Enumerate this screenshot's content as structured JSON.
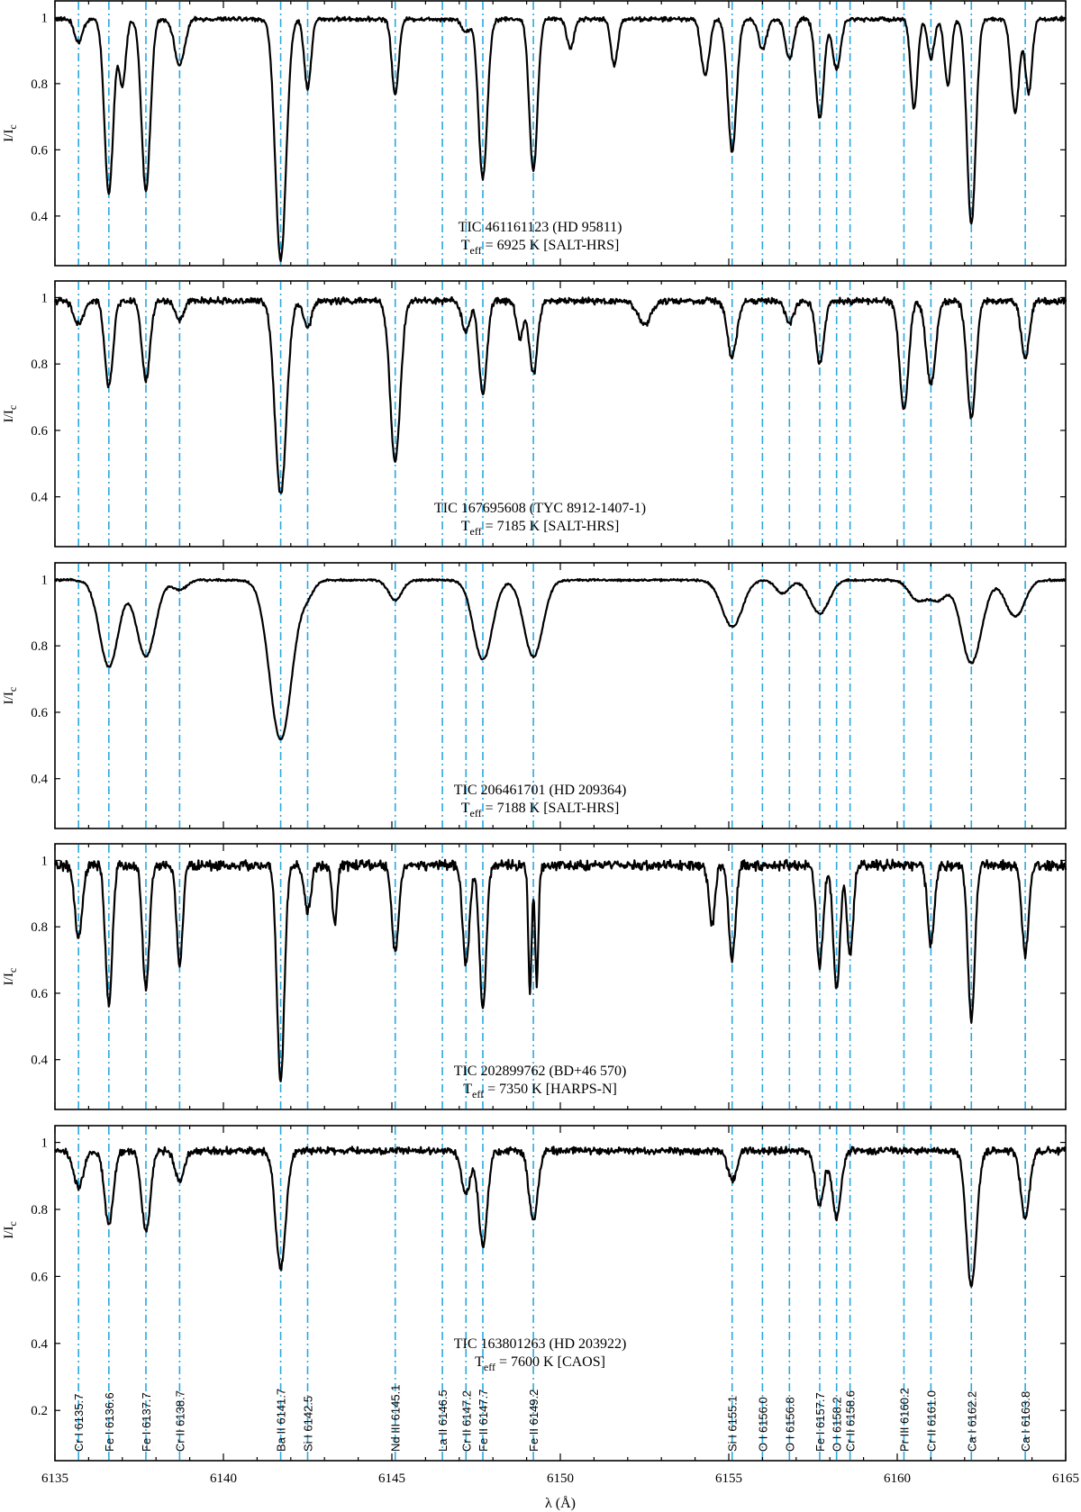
{
  "chart_data": [
    {
      "type": "line",
      "target": "TIC 461161123 (HD 95811)",
      "teff_value": "= 6925 K",
      "instrument": "[SALT-HRS]",
      "ylabel": "I/I_c",
      "xlim": [
        6135,
        6165
      ],
      "ylim": [
        0.25,
        1.05
      ],
      "yticks": [
        0.4,
        0.6,
        0.8,
        1
      ],
      "continuum": 0.995,
      "lines": [
        {
          "x": 6135.7,
          "depth": 0.07,
          "width": 0.12
        },
        {
          "x": 6136.6,
          "depth": 0.53,
          "width": 0.13
        },
        {
          "x": 6137.0,
          "depth": 0.2,
          "width": 0.1
        },
        {
          "x": 6137.7,
          "depth": 0.52,
          "width": 0.13
        },
        {
          "x": 6138.7,
          "depth": 0.14,
          "width": 0.15
        },
        {
          "x": 6141.7,
          "depth": 0.73,
          "width": 0.16
        },
        {
          "x": 6142.5,
          "depth": 0.21,
          "width": 0.1
        },
        {
          "x": 6145.1,
          "depth": 0.23,
          "width": 0.1
        },
        {
          "x": 6147.2,
          "depth": 0.04,
          "width": 0.12
        },
        {
          "x": 6147.7,
          "depth": 0.48,
          "width": 0.13
        },
        {
          "x": 6149.2,
          "depth": 0.46,
          "width": 0.12
        },
        {
          "x": 6150.3,
          "depth": 0.09,
          "width": 0.1
        },
        {
          "x": 6151.6,
          "depth": 0.14,
          "width": 0.1
        },
        {
          "x": 6154.3,
          "depth": 0.17,
          "width": 0.12
        },
        {
          "x": 6155.1,
          "depth": 0.4,
          "width": 0.13
        },
        {
          "x": 6156.0,
          "depth": 0.09,
          "width": 0.12
        },
        {
          "x": 6156.8,
          "depth": 0.12,
          "width": 0.12
        },
        {
          "x": 6157.7,
          "depth": 0.3,
          "width": 0.12
        },
        {
          "x": 6158.2,
          "depth": 0.15,
          "width": 0.12
        },
        {
          "x": 6160.5,
          "depth": 0.27,
          "width": 0.1
        },
        {
          "x": 6161.0,
          "depth": 0.12,
          "width": 0.1
        },
        {
          "x": 6161.5,
          "depth": 0.2,
          "width": 0.1
        },
        {
          "x": 6162.2,
          "depth": 0.62,
          "width": 0.13
        },
        {
          "x": 6163.5,
          "depth": 0.28,
          "width": 0.12
        },
        {
          "x": 6163.9,
          "depth": 0.22,
          "width": 0.1
        }
      ]
    },
    {
      "type": "line",
      "target": "TIC 167695608 (TYC 8912-1407-1)",
      "teff_value": "= 7185 K",
      "instrument": "[SALT-HRS]",
      "ylabel": "I/I_c",
      "xlim": [
        6135,
        6165
      ],
      "ylim": [
        0.25,
        1.05
      ],
      "yticks": [
        0.4,
        0.6,
        0.8,
        1
      ],
      "continuum": 0.99,
      "lines": [
        {
          "x": 6135.7,
          "depth": 0.07,
          "width": 0.15
        },
        {
          "x": 6136.6,
          "depth": 0.26,
          "width": 0.12
        },
        {
          "x": 6137.7,
          "depth": 0.24,
          "width": 0.12
        },
        {
          "x": 6138.7,
          "depth": 0.06,
          "width": 0.12
        },
        {
          "x": 6141.7,
          "depth": 0.58,
          "width": 0.17
        },
        {
          "x": 6142.5,
          "depth": 0.08,
          "width": 0.12
        },
        {
          "x": 6145.1,
          "depth": 0.48,
          "width": 0.15
        },
        {
          "x": 6147.2,
          "depth": 0.09,
          "width": 0.12
        },
        {
          "x": 6147.7,
          "depth": 0.28,
          "width": 0.12
        },
        {
          "x": 6148.8,
          "depth": 0.11,
          "width": 0.1
        },
        {
          "x": 6149.2,
          "depth": 0.22,
          "width": 0.12
        },
        {
          "x": 6152.5,
          "depth": 0.07,
          "width": 0.2
        },
        {
          "x": 6155.1,
          "depth": 0.17,
          "width": 0.14
        },
        {
          "x": 6156.8,
          "depth": 0.07,
          "width": 0.12
        },
        {
          "x": 6157.7,
          "depth": 0.19,
          "width": 0.12
        },
        {
          "x": 6160.2,
          "depth": 0.33,
          "width": 0.13
        },
        {
          "x": 6161.0,
          "depth": 0.25,
          "width": 0.14
        },
        {
          "x": 6162.2,
          "depth": 0.35,
          "width": 0.13
        },
        {
          "x": 6163.8,
          "depth": 0.17,
          "width": 0.12
        }
      ]
    },
    {
      "type": "line",
      "target": "TIC 206461701 (HD 209364)",
      "teff_value": "= 7188 K",
      "instrument": "[SALT-HRS]",
      "ylabel": "I/I_c",
      "xlim": [
        6135,
        6165
      ],
      "ylim": [
        0.25,
        1.05
      ],
      "yticks": [
        0.4,
        0.6,
        0.8,
        1
      ],
      "continuum": 0.998,
      "lines": [
        {
          "x": 6136.6,
          "depth": 0.26,
          "width": 0.28
        },
        {
          "x": 6137.7,
          "depth": 0.23,
          "width": 0.28
        },
        {
          "x": 6138.7,
          "depth": 0.03,
          "width": 0.2
        },
        {
          "x": 6141.7,
          "depth": 0.48,
          "width": 0.33
        },
        {
          "x": 6142.5,
          "depth": 0.04,
          "width": 0.2
        },
        {
          "x": 6145.1,
          "depth": 0.06,
          "width": 0.2
        },
        {
          "x": 6147.7,
          "depth": 0.24,
          "width": 0.28
        },
        {
          "x": 6149.2,
          "depth": 0.23,
          "width": 0.28
        },
        {
          "x": 6155.1,
          "depth": 0.14,
          "width": 0.3
        },
        {
          "x": 6156.6,
          "depth": 0.04,
          "width": 0.2
        },
        {
          "x": 6157.7,
          "depth": 0.1,
          "width": 0.28
        },
        {
          "x": 6160.6,
          "depth": 0.06,
          "width": 0.25
        },
        {
          "x": 6161.2,
          "depth": 0.06,
          "width": 0.25
        },
        {
          "x": 6162.2,
          "depth": 0.25,
          "width": 0.3
        },
        {
          "x": 6163.5,
          "depth": 0.11,
          "width": 0.28
        }
      ]
    },
    {
      "type": "line",
      "target": "TIC 202899762 (BD+46 570)",
      "teff_value": "= 7350 K",
      "instrument": "[HARPS-N]",
      "ylabel": "I/I_c",
      "xlim": [
        6135,
        6165
      ],
      "ylim": [
        0.25,
        1.05
      ],
      "yticks": [
        0.4,
        0.6,
        0.8,
        1
      ],
      "continuum": 0.985,
      "lines": [
        {
          "x": 6135.7,
          "depth": 0.22,
          "width": 0.11
        },
        {
          "x": 6136.6,
          "depth": 0.42,
          "width": 0.1
        },
        {
          "x": 6137.7,
          "depth": 0.37,
          "width": 0.1
        },
        {
          "x": 6138.7,
          "depth": 0.3,
          "width": 0.09
        },
        {
          "x": 6141.7,
          "depth": 0.65,
          "width": 0.11
        },
        {
          "x": 6142.5,
          "depth": 0.14,
          "width": 0.1
        },
        {
          "x": 6143.3,
          "depth": 0.18,
          "width": 0.07
        },
        {
          "x": 6145.1,
          "depth": 0.26,
          "width": 0.1
        },
        {
          "x": 6147.2,
          "depth": 0.3,
          "width": 0.1
        },
        {
          "x": 6147.7,
          "depth": 0.43,
          "width": 0.1
        },
        {
          "x": 6149.1,
          "depth": 0.38,
          "width": 0.05
        },
        {
          "x": 6149.3,
          "depth": 0.36,
          "width": 0.05
        },
        {
          "x": 6154.5,
          "depth": 0.18,
          "width": 0.09
        },
        {
          "x": 6155.1,
          "depth": 0.28,
          "width": 0.1
        },
        {
          "x": 6157.7,
          "depth": 0.3,
          "width": 0.1
        },
        {
          "x": 6158.2,
          "depth": 0.37,
          "width": 0.1
        },
        {
          "x": 6158.6,
          "depth": 0.27,
          "width": 0.09
        },
        {
          "x": 6161.0,
          "depth": 0.24,
          "width": 0.1
        },
        {
          "x": 6162.2,
          "depth": 0.47,
          "width": 0.1
        },
        {
          "x": 6163.8,
          "depth": 0.27,
          "width": 0.1
        }
      ]
    },
    {
      "type": "line",
      "target": "TIC 163801263 (HD 203922)",
      "teff_value": "= 7600 K",
      "instrument": "[CAOS]",
      "ylabel": "I/I_c",
      "xlabel": "λ (Å)",
      "xlim": [
        6135,
        6165
      ],
      "xticks": [
        6135,
        6140,
        6145,
        6150,
        6155,
        6160,
        6165
      ],
      "ylim": [
        0.05,
        1.05
      ],
      "yticks": [
        0.2,
        0.4,
        0.6,
        0.8,
        1
      ],
      "continuum": 0.975,
      "lines": [
        {
          "x": 6135.7,
          "depth": 0.11,
          "width": 0.15
        },
        {
          "x": 6136.6,
          "depth": 0.22,
          "width": 0.13
        },
        {
          "x": 6137.7,
          "depth": 0.24,
          "width": 0.13
        },
        {
          "x": 6138.7,
          "depth": 0.09,
          "width": 0.13
        },
        {
          "x": 6141.7,
          "depth": 0.35,
          "width": 0.15
        },
        {
          "x": 6147.2,
          "depth": 0.13,
          "width": 0.13
        },
        {
          "x": 6147.7,
          "depth": 0.28,
          "width": 0.13
        },
        {
          "x": 6149.2,
          "depth": 0.21,
          "width": 0.13
        },
        {
          "x": 6155.1,
          "depth": 0.09,
          "width": 0.13
        },
        {
          "x": 6157.7,
          "depth": 0.16,
          "width": 0.13
        },
        {
          "x": 6158.2,
          "depth": 0.2,
          "width": 0.13
        },
        {
          "x": 6162.2,
          "depth": 0.4,
          "width": 0.15
        },
        {
          "x": 6163.8,
          "depth": 0.2,
          "width": 0.13
        }
      ]
    }
  ],
  "figure": {
    "teff_symbol": "T",
    "teff_sub": "eff",
    "line_color": "#29A9E0",
    "line_ids": [
      {
        "x": 6135.7,
        "label": "Cr I 6135.7"
      },
      {
        "x": 6136.6,
        "label": "Fe I 6136.6"
      },
      {
        "x": 6137.7,
        "label": "Fe I 6137.7"
      },
      {
        "x": 6138.7,
        "label": "Cr II 6138.7"
      },
      {
        "x": 6141.7,
        "label": "Ba II 6141.7"
      },
      {
        "x": 6142.5,
        "label": "Si I 6142.5"
      },
      {
        "x": 6145.1,
        "label": "Nd III 6145.1"
      },
      {
        "x": 6146.5,
        "label": "La II 6146.5"
      },
      {
        "x": 6147.2,
        "label": "Cr II 6147.2"
      },
      {
        "x": 6147.7,
        "label": "Fe II 6147.7"
      },
      {
        "x": 6149.2,
        "label": "Fe II 6149.2"
      },
      {
        "x": 6155.1,
        "label": "Si I 6155.1"
      },
      {
        "x": 6156.0,
        "label": "O I 6156.0"
      },
      {
        "x": 6156.8,
        "label": "O I 6156.8"
      },
      {
        "x": 6157.7,
        "label": "Fe I 6157.7"
      },
      {
        "x": 6158.2,
        "label": "O I 6158.2"
      },
      {
        "x": 6158.6,
        "label": "Cr II 6158.6"
      },
      {
        "x": 6160.2,
        "label": "Pr III 6160.2"
      },
      {
        "x": 6161.0,
        "label": "Cr II 6161.0"
      },
      {
        "x": 6162.2,
        "label": "Ca I 6162.2"
      },
      {
        "x": 6163.8,
        "label": "Ca I 6163.8"
      }
    ]
  }
}
